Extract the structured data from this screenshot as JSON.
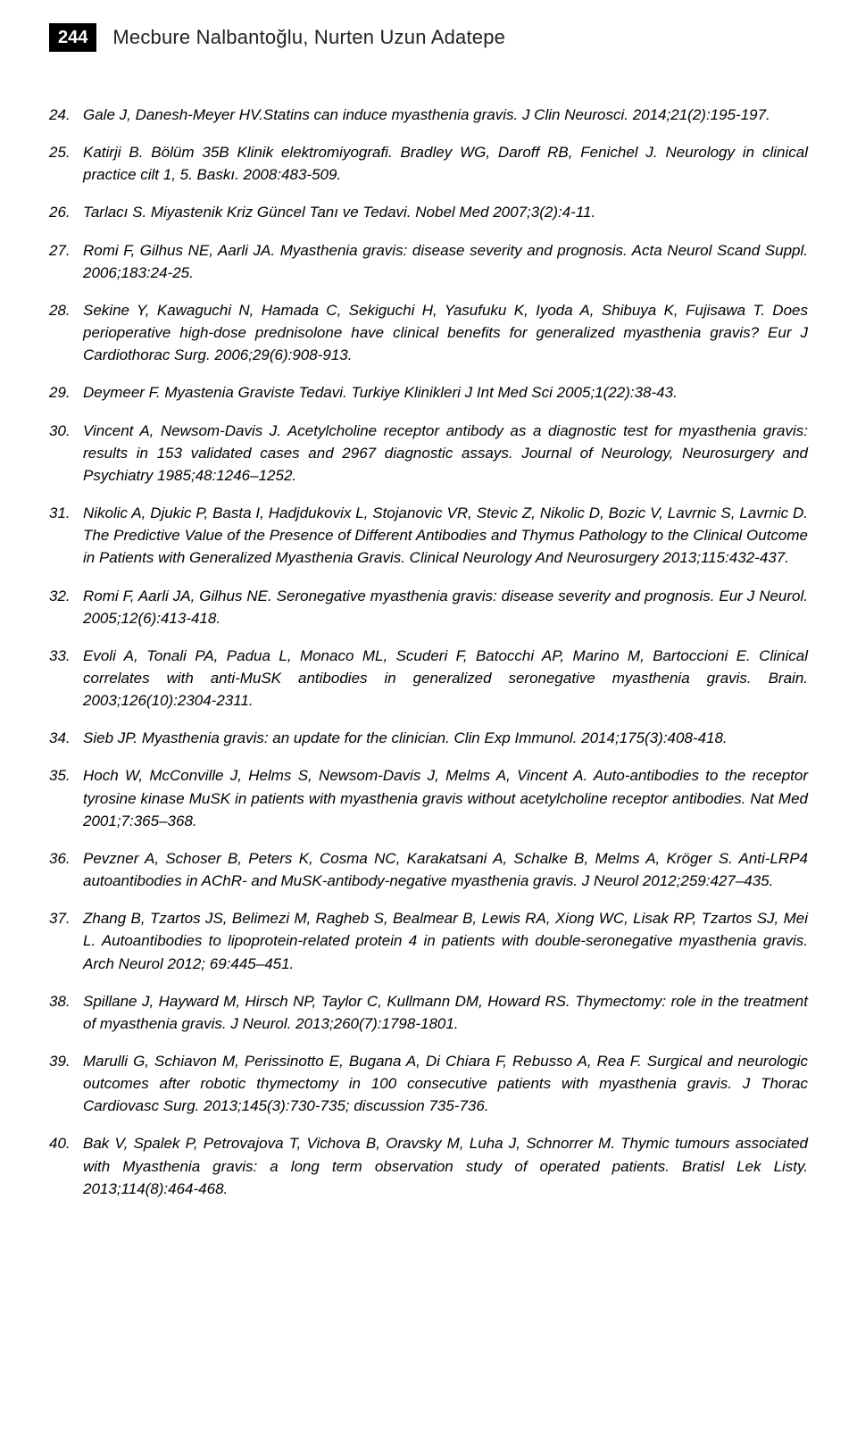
{
  "page_number": "244",
  "authors": "Mecbure Nalbantoğlu, Nurten Uzun Adatepe",
  "references": [
    {
      "n": "24.",
      "t": "Gale J, Danesh-Meyer HV.Statins can induce myasthenia gravis. J Clin Neurosci. 2014;21(2):195-197."
    },
    {
      "n": "25.",
      "t": "Katirji B. Bölüm 35B Klinik elektromiyografi. Bradley WG, Daroff RB, Fenichel J. Neurology in clinical practice cilt 1, 5. Baskı. 2008:483-509."
    },
    {
      "n": "26.",
      "t": "Tarlacı S. Miyastenik Kriz Güncel Tanı ve Tedavi. Nobel Med 2007;3(2):4-11."
    },
    {
      "n": "27.",
      "t": "Romi F, Gilhus NE, Aarli JA. Myasthenia gravis: disease severity and prognosis. Acta Neurol Scand Suppl. 2006;183:24-25."
    },
    {
      "n": "28.",
      "t": "Sekine Y, Kawaguchi N, Hamada C, Sekiguchi H, Yasufuku K, Iyoda A, Shibuya K, Fujisawa T. Does perioperative high-dose prednisolone have clinical benefits for generalized myasthenia gravis? Eur J Cardiothorac Surg. 2006;29(6):908-913."
    },
    {
      "n": "29.",
      "t": "Deymeer F. Myastenia Graviste Tedavi. Turkiye Klinikleri J Int Med Sci 2005;1(22):38-43."
    },
    {
      "n": "30.",
      "t": "Vincent A, Newsom-Davis J. Acetylcholine receptor antibody as a diagnostic test for myasthenia gravis: results in 153 validated cases and 2967 diagnostic assays. Journal of Neurology, Neurosurgery and Psychiatry 1985;48:1246–1252."
    },
    {
      "n": "31.",
      "t": "Nikolic A, Djukic P, Basta I, Hadjdukovix L, Stojanovic VR, Stevic Z, Nikolic D, Bozic V, Lavrnic S, Lavrnic D. The Predictive Value of the Presence of Different Antibodies and Thymus Pathology to the Clinical Outcome in Patients with Generalized Myasthenia Gravis. Clinical Neurology And Neurosurgery 2013;115:432-437."
    },
    {
      "n": "32.",
      "t": "Romi F, Aarli JA, Gilhus NE. Seronegative myasthenia gravis: disease severity and prognosis. Eur J Neurol. 2005;12(6):413-418."
    },
    {
      "n": "33.",
      "t": "Evoli A, Tonali PA, Padua L, Monaco ML, Scuderi F, Batocchi AP, Marino M, Bartoccioni E. Clinical correlates with anti-MuSK antibodies in generalized seronegative myasthenia gravis. Brain. 2003;126(10):2304-2311."
    },
    {
      "n": "34.",
      "t": "Sieb JP. Myasthenia gravis: an update for the clinician. Clin Exp Immunol. 2014;175(3):408-418."
    },
    {
      "n": "35.",
      "t": "Hoch W, McConville J, Helms S, Newsom-Davis J, Melms A, Vincent A. Auto-antibodies to the receptor tyrosine kinase MuSK in patients with myasthenia gravis without acetylcholine receptor antibodies. Nat Med 2001;7:365–368."
    },
    {
      "n": "36.",
      "t": "Pevzner A, Schoser B, Peters K, Cosma NC, Karakatsani A, Schalke B, Melms A, Kröger S. Anti-LRP4 autoantibodies in AChR- and MuSK-antibody-negative myasthenia gravis. J Neurol 2012;259:427–435."
    },
    {
      "n": "37.",
      "t": "Zhang B, Tzartos JS, Belimezi M, Ragheb S, Bealmear B, Lewis RA, Xiong WC, Lisak RP, Tzartos SJ, Mei L. Autoantibodies to lipoprotein-related protein 4 in patients with double-seronegative myasthenia gravis. Arch Neurol 2012; 69:445–451."
    },
    {
      "n": "38.",
      "t": "Spillane J, Hayward M, Hirsch NP, Taylor C, Kullmann DM, Howard RS. Thymectomy: role in the treatment of myasthenia gravis. J Neurol. 2013;260(7):1798-1801."
    },
    {
      "n": "39.",
      "t": "Marulli G, Schiavon M, Perissinotto E, Bugana A, Di Chiara F, Rebusso A, Rea F. Surgical and neurologic outcomes after robotic thymectomy in 100 consecutive patients with myasthenia gravis. J Thorac Cardiovasc Surg. 2013;145(3):730-735; discussion 735-736."
    },
    {
      "n": "40.",
      "t": "Bak V, Spalek P, Petrovajova T, Vichova B, Oravsky M, Luha J, Schnorrer M. Thymic tumours associated with Myasthenia gravis: a long term observation study of operated patients. Bratisl Lek Listy. 2013;114(8):464-468."
    }
  ]
}
